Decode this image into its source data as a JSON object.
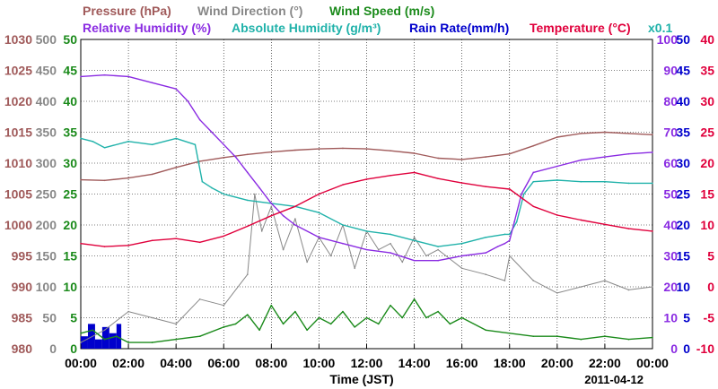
{
  "chart_data": {
    "type": "line",
    "date": "2011-04-12",
    "xlabel": "Time (JST)",
    "x_ticks": [
      "00:00",
      "02:00",
      "04:00",
      "06:00",
      "08:00",
      "10:00",
      "12:00",
      "14:00",
      "16:00",
      "18:00",
      "20:00",
      "22:00",
      "00:00"
    ],
    "xlim_hours": [
      0,
      24
    ],
    "legend": [
      {
        "text": "Pressure (hPa)",
        "color": "#a05a5a"
      },
      {
        "text": "Wind Direction (°)",
        "color": "#888888"
      },
      {
        "text": "Wind Speed (m/s)",
        "color": "#1a8a1a"
      },
      {
        "text": "Relative Humidity (%)",
        "color": "#8a2be2"
      },
      {
        "text": "Absolute Humidity (g/m³)",
        "color": "#20b2aa"
      },
      {
        "text": "Rain Rate(mm/h)",
        "color": "#0000cc"
      },
      {
        "text": "Temperature (°C)",
        "color": "#e0003c"
      },
      {
        "text": "x0.1",
        "color": "#20b2aa"
      }
    ],
    "axes": {
      "pressure": {
        "color": "#a05a5a",
        "ylim": [
          980,
          1030
        ],
        "ticks": [
          "980",
          "985",
          "990",
          "995",
          "1000",
          "1005",
          "1010",
          "1015",
          "1020",
          "1025",
          "1030"
        ]
      },
      "wind_direction": {
        "color": "#888888",
        "ylim": [
          0,
          500
        ],
        "ticks": [
          "0",
          "50",
          "100",
          "150",
          "200",
          "250",
          "300",
          "350",
          "400",
          "450",
          "500"
        ]
      },
      "wind_speed": {
        "color": "#1a8a1a",
        "ylim": [
          0,
          50
        ],
        "ticks": [
          "0",
          "5",
          "10",
          "15",
          "20",
          "25",
          "30",
          "35",
          "40",
          "45",
          "50"
        ]
      },
      "humidity": {
        "color": "#8a2be2",
        "ylim": [
          0,
          100
        ],
        "ticks": [
          "0",
          "10",
          "20",
          "30",
          "40",
          "50",
          "60",
          "70",
          "80",
          "90",
          "100"
        ]
      },
      "rain_rate": {
        "color": "#0000cc",
        "ylim": [
          0,
          50
        ],
        "ticks": [
          "0",
          "5",
          "10",
          "15",
          "20",
          "25",
          "30",
          "35",
          "40",
          "45",
          "50"
        ]
      },
      "temperature": {
        "color": "#e0003c",
        "ylim": [
          -10,
          40
        ],
        "ticks": [
          "-10",
          "-5",
          "0",
          "5",
          "10",
          "15",
          "20",
          "25",
          "30",
          "35",
          "40"
        ]
      }
    },
    "series": [
      {
        "name": "Pressure (hPa)",
        "axis": "pressure",
        "color": "#a05a5a",
        "x": [
          0,
          1,
          2,
          3,
          4,
          5,
          6,
          7,
          8,
          9,
          10,
          11,
          12,
          13,
          14,
          15,
          16,
          17,
          18,
          19,
          20,
          21,
          22,
          23,
          24
        ],
        "y": [
          1007.3,
          1007.2,
          1007.6,
          1008.2,
          1009.3,
          1010.3,
          1010.9,
          1011.4,
          1011.8,
          1012.1,
          1012.3,
          1012.4,
          1012.3,
          1012.0,
          1011.6,
          1010.8,
          1010.6,
          1011.0,
          1011.5,
          1012.8,
          1014.2,
          1014.8,
          1015.0,
          1014.8,
          1014.6
        ]
      },
      {
        "name": "Relative Humidity (%)",
        "axis": "humidity",
        "color": "#8a2be2",
        "x": [
          0,
          1,
          2,
          3,
          4,
          4.5,
          5,
          5.5,
          6,
          6.5,
          7,
          7.5,
          8,
          8.5,
          9,
          10,
          11,
          12,
          13,
          14,
          15,
          16,
          17,
          17.5,
          17.8,
          18,
          18.2,
          18.5,
          19,
          20,
          21,
          22,
          23,
          24
        ],
        "y": [
          88,
          88.5,
          88,
          86,
          84,
          80,
          74,
          70,
          66,
          62,
          57,
          52,
          47,
          43,
          40,
          36,
          34,
          32,
          31,
          28.5,
          28.5,
          30,
          31,
          33,
          34,
          35,
          41,
          50,
          57,
          59,
          61,
          62,
          63,
          63.5
        ]
      },
      {
        "name": "Absolute Humidity (g/m³) x0.1",
        "axis": "humidity",
        "color": "#20b2aa",
        "x": [
          0,
          0.5,
          1,
          2,
          3,
          4,
          4.8,
          5.1,
          5.5,
          6,
          7,
          8,
          9,
          10,
          11,
          12,
          13,
          14,
          15,
          16,
          17,
          17.8,
          18,
          18.3,
          18.6,
          19,
          20,
          21,
          22,
          23,
          24
        ],
        "y": [
          68,
          67,
          65,
          67,
          66,
          68,
          66,
          54,
          52,
          50,
          48,
          47,
          46,
          44,
          40,
          38,
          37,
          35,
          33,
          34,
          36,
          37,
          37,
          41,
          50,
          54,
          54.5,
          54,
          54,
          53.5,
          53.5
        ]
      },
      {
        "name": "Temperature (°C)",
        "axis": "temperature",
        "color": "#e0003c",
        "x": [
          0,
          1,
          2,
          3,
          4,
          5,
          6,
          7,
          8,
          9,
          10,
          11,
          12,
          13,
          14,
          15,
          16,
          17,
          18,
          19,
          20,
          21,
          22,
          23,
          24
        ],
        "y": [
          7,
          6.5,
          6.7,
          7.5,
          7.8,
          7.2,
          8.2,
          9.8,
          11.5,
          13,
          15,
          16.5,
          17.4,
          18,
          18.5,
          17.5,
          16.8,
          16.2,
          15.8,
          13,
          11.6,
          10.8,
          10.1,
          9.4,
          9
        ]
      },
      {
        "name": "Wind Speed (m/s)",
        "axis": "wind_speed",
        "color": "#1a8a1a",
        "x": [
          0,
          0.5,
          1,
          1.5,
          2,
          3,
          4,
          5,
          6,
          6.5,
          7,
          7.5,
          8,
          8.5,
          9,
          9.5,
          10,
          10.5,
          11,
          11.5,
          12,
          12.5,
          13,
          13.5,
          14,
          14.5,
          15,
          15.5,
          16,
          17,
          18,
          19,
          20,
          21,
          22,
          23,
          24
        ],
        "y": [
          2.5,
          3,
          1.5,
          2,
          1,
          1,
          1.5,
          2,
          3.5,
          4,
          5.5,
          3,
          7,
          4,
          6,
          3,
          5,
          4,
          6,
          3.5,
          5,
          4,
          7,
          5,
          8,
          5,
          6,
          4,
          5,
          3,
          2.5,
          2,
          2,
          1.5,
          2,
          1.5,
          1.8
        ]
      },
      {
        "name": "Wind Direction (°)",
        "axis": "wind_direction",
        "color": "#888888",
        "x": [
          0,
          1,
          2,
          3,
          4,
          5,
          6,
          7,
          7.3,
          7.6,
          8,
          8.5,
          9,
          9.5,
          10,
          10.5,
          11,
          11.5,
          12,
          12.5,
          13,
          13.5,
          14,
          14.5,
          15,
          16,
          17,
          17.8,
          18,
          19,
          20,
          21,
          22,
          23,
          24
        ],
        "y": [
          10,
          30,
          60,
          50,
          40,
          80,
          70,
          120,
          250,
          190,
          230,
          160,
          210,
          140,
          180,
          150,
          200,
          130,
          190,
          160,
          170,
          140,
          180,
          150,
          160,
          130,
          120,
          110,
          150,
          110,
          90,
          100,
          110,
          95,
          100
        ]
      },
      {
        "name": "Rain Rate(mm/h)",
        "axis": "rain_rate",
        "color": "#0000cc",
        "x": [
          0,
          0.3,
          0.6,
          0.9,
          1.2,
          1.5,
          1.7
        ],
        "y": [
          2,
          4,
          1.5,
          3.5,
          2.5,
          4,
          0
        ]
      }
    ]
  }
}
